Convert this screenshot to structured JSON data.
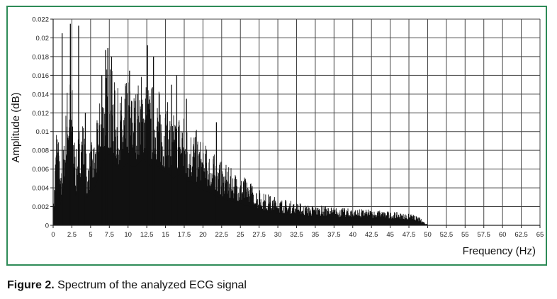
{
  "colors": {
    "frame": "#2e8b57",
    "bars": "#111111",
    "grid": "#444444"
  },
  "caption": {
    "label": "Figure 2.",
    "text": " Spectrum of the analyzed ECG signal"
  },
  "chart_data": {
    "type": "bar",
    "title": "",
    "xlabel": "Frequency (Hz)",
    "ylabel": "Amplitude (dB)",
    "xlim": [
      0,
      65
    ],
    "ylim": [
      0,
      0.022
    ],
    "grid": true,
    "x_ticks": [
      "0",
      "2.5",
      "5",
      "7.5",
      "10",
      "12.5",
      "15",
      "17.5",
      "20",
      "22.5",
      "25",
      "27.5",
      "30",
      "32.5",
      "35",
      "37.5",
      "40",
      "42.5",
      "45",
      "47.5",
      "50",
      "52.5",
      "55",
      "57.5",
      "60",
      "62.5",
      "65"
    ],
    "y_ticks": [
      "0",
      "0.002",
      "0.004",
      "0.006",
      "0.008",
      "0.01",
      "0.012",
      "0.014",
      "0.016",
      "0.018",
      "0.02",
      "0.022"
    ],
    "envelope": {
      "x": [
        0,
        0.5,
        1,
        1.5,
        2,
        2.5,
        3,
        3.5,
        4,
        4.5,
        5,
        5.5,
        6,
        6.5,
        7,
        7.5,
        8,
        8.5,
        9,
        9.5,
        10,
        10.5,
        11,
        11.5,
        12,
        12.5,
        13,
        13.5,
        14,
        14.5,
        15,
        15.5,
        16,
        16.5,
        17,
        17.5,
        18,
        18.5,
        19,
        19.5,
        20,
        21,
        22,
        23,
        24,
        25,
        26,
        27,
        28,
        29,
        30,
        32,
        34,
        36,
        38,
        40,
        42,
        44,
        46,
        48,
        49,
        49.5,
        50
      ],
      "y": [
        0.0012,
        0.013,
        0.0052,
        0.01,
        0.017,
        0.016,
        0.0075,
        0.011,
        0.012,
        0.0068,
        0.0088,
        0.0093,
        0.012,
        0.016,
        0.017,
        0.018,
        0.016,
        0.015,
        0.014,
        0.015,
        0.016,
        0.015,
        0.015,
        0.016,
        0.017,
        0.016,
        0.015,
        0.016,
        0.015,
        0.014,
        0.0135,
        0.013,
        0.012,
        0.0125,
        0.013,
        0.012,
        0.011,
        0.011,
        0.0105,
        0.0095,
        0.009,
        0.0082,
        0.0072,
        0.0065,
        0.006,
        0.0055,
        0.005,
        0.0042,
        0.0036,
        0.0033,
        0.003,
        0.0026,
        0.0022,
        0.0021,
        0.0019,
        0.0018,
        0.0017,
        0.0016,
        0.0014,
        0.0012,
        0.0008,
        0.0004,
        0.0001
      ]
    },
    "peaks": [
      {
        "x": 1.2,
        "y": 0.0205
      },
      {
        "x": 2.3,
        "y": 0.0215
      },
      {
        "x": 3.4,
        "y": 0.0213
      },
      {
        "x": 4.3,
        "y": 0.012
      },
      {
        "x": 6.5,
        "y": 0.016
      },
      {
        "x": 7.0,
        "y": 0.0187
      },
      {
        "x": 7.3,
        "y": 0.0189
      },
      {
        "x": 7.8,
        "y": 0.018
      },
      {
        "x": 10.2,
        "y": 0.0165
      },
      {
        "x": 12.6,
        "y": 0.0192
      },
      {
        "x": 13.4,
        "y": 0.018
      },
      {
        "x": 15.8,
        "y": 0.015
      },
      {
        "x": 16.5,
        "y": 0.016
      },
      {
        "x": 17.8,
        "y": 0.0135
      },
      {
        "x": 21.8,
        "y": 0.011
      }
    ]
  }
}
